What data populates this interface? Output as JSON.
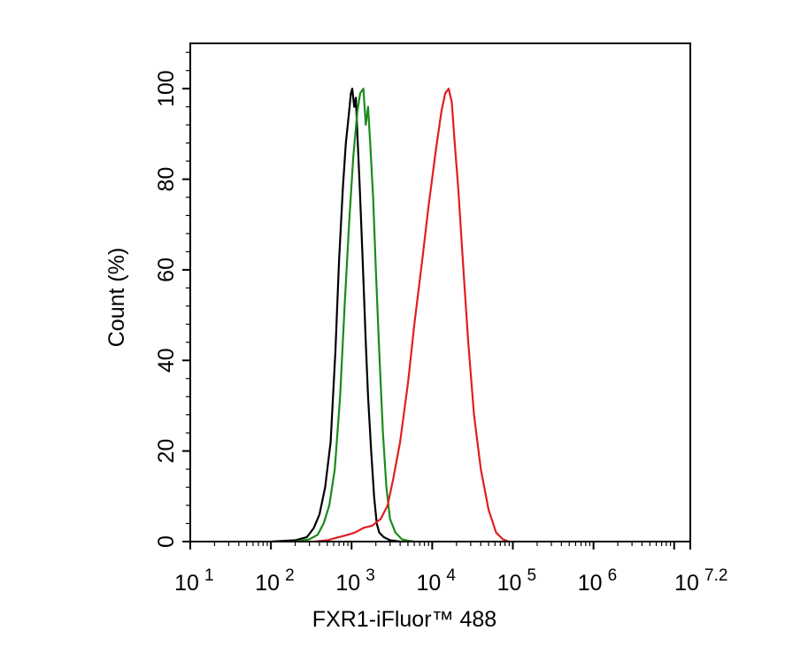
{
  "chart_data": {
    "type": "line",
    "title": "",
    "xlabel": "FXR1-iFluor™ 488",
    "ylabel": "Count  (%)",
    "xscale": "log",
    "xlim": [
      10,
      15848932
    ],
    "ylim": [
      0,
      110
    ],
    "grid": false,
    "legend": "none",
    "x_ticks": [
      {
        "value": 10,
        "base": "10",
        "exp": "1"
      },
      {
        "value": 100,
        "base": "10",
        "exp": "2"
      },
      {
        "value": 1000,
        "base": "10",
        "exp": "3"
      },
      {
        "value": 10000,
        "base": "10",
        "exp": "4"
      },
      {
        "value": 100000,
        "base": "10",
        "exp": "5"
      },
      {
        "value": 1000000,
        "base": "10",
        "exp": "6"
      },
      {
        "value": 15848932,
        "base": "10",
        "exp": "7.2"
      }
    ],
    "y_ticks": [
      "0",
      "20",
      "40",
      "60",
      "80",
      "100"
    ],
    "series": [
      {
        "color": "#000000",
        "x": [
          100,
          200,
          280,
          340,
          400,
          470,
          550,
          630,
          700,
          780,
          850,
          920,
          980,
          1020,
          1080,
          1130,
          1180,
          1250,
          1320,
          1400,
          1500,
          1600,
          1750,
          1900,
          2050,
          2200,
          2500,
          3000,
          4000
        ],
        "y": [
          0,
          0.3,
          1,
          3,
          6,
          12,
          22,
          42,
          62,
          78,
          88,
          94,
          99,
          100,
          96,
          98,
          90,
          80,
          70,
          58,
          44,
          32,
          20,
          10,
          4,
          2,
          1,
          0.3,
          0
        ]
      },
      {
        "color": "#1a8c1a",
        "x": [
          200,
          300,
          380,
          450,
          530,
          620,
          720,
          820,
          930,
          1050,
          1180,
          1280,
          1400,
          1500,
          1600,
          1700,
          1850,
          2000,
          2200,
          2450,
          2700,
          3000,
          3500,
          4200,
          5000,
          6000
        ],
        "y": [
          0,
          0.5,
          1.5,
          4,
          8,
          16,
          32,
          52,
          70,
          85,
          95,
          99,
          100,
          92,
          96,
          88,
          76,
          60,
          42,
          24,
          12,
          5,
          2,
          0.5,
          0.2,
          0
        ]
      },
      {
        "color": "#e01e1e",
        "x": [
          350,
          500,
          700,
          900,
          1100,
          1400,
          1800,
          2300,
          2800,
          3300,
          4000,
          5000,
          6000,
          7500,
          9000,
          11000,
          13000,
          14500,
          16000,
          17500,
          19000,
          21000,
          24000,
          28000,
          33000,
          40000,
          50000,
          62000,
          75000,
          90000
        ],
        "y": [
          0,
          0.3,
          1,
          1.5,
          2,
          3,
          3.5,
          5,
          8,
          14,
          22,
          35,
          48,
          62,
          74,
          86,
          95,
          99,
          100,
          97,
          88,
          78,
          62,
          44,
          28,
          16,
          7,
          2,
          0.5,
          0
        ]
      }
    ]
  }
}
